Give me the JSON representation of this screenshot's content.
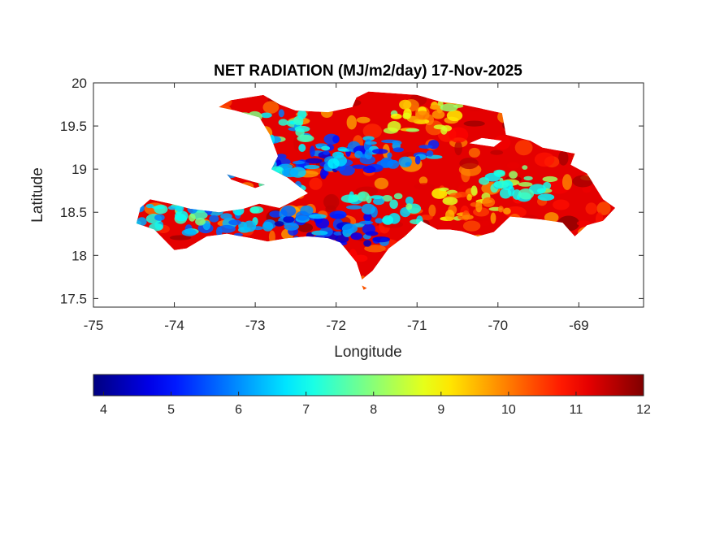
{
  "chart_data": {
    "type": "heatmap",
    "title": "NET RADIATION (MJ/m2/day) 17-Nov-2025",
    "xlabel": "Longitude",
    "ylabel": "Latitude",
    "xlim": [
      -75,
      -68.2
    ],
    "ylim": [
      17.4,
      20
    ],
    "x_ticks": [
      -75,
      -74,
      -73,
      -72,
      -71,
      -70,
      -69
    ],
    "x_tick_labels": [
      "-75",
      "-74",
      "-73",
      "-72",
      "-71",
      "-70",
      "-69"
    ],
    "y_ticks": [
      17.5,
      18,
      18.5,
      19,
      19.5,
      20
    ],
    "y_tick_labels": [
      "17.5",
      "18",
      "18.5",
      "19",
      "19.5",
      "20"
    ],
    "grid": false,
    "colormap": "jet",
    "colorbar": {
      "orientation": "horizontal",
      "placement": "below",
      "range": [
        3.85,
        12
      ],
      "ticks": [
        4,
        5,
        6,
        7,
        8,
        9,
        10,
        11,
        12
      ],
      "tick_labels": [
        "4",
        "5",
        "6",
        "7",
        "8",
        "9",
        "10",
        "11",
        "12"
      ]
    },
    "region": "Hispaniola",
    "land_outline": [
      [
        -74.47,
        18.37
      ],
      [
        -74.42,
        18.55
      ],
      [
        -74.3,
        18.65
      ],
      [
        -74.05,
        18.6
      ],
      [
        -73.8,
        18.54
      ],
      [
        -73.45,
        18.5
      ],
      [
        -73.15,
        18.54
      ],
      [
        -72.95,
        18.6
      ],
      [
        -72.7,
        18.55
      ],
      [
        -72.55,
        18.62
      ],
      [
        -72.35,
        18.72
      ],
      [
        -72.6,
        18.9
      ],
      [
        -72.8,
        19.0
      ],
      [
        -72.72,
        19.15
      ],
      [
        -72.82,
        19.4
      ],
      [
        -72.95,
        19.6
      ],
      [
        -73.25,
        19.68
      ],
      [
        -73.45,
        19.72
      ],
      [
        -73.3,
        19.8
      ],
      [
        -72.9,
        19.86
      ],
      [
        -72.7,
        19.75
      ],
      [
        -72.5,
        19.68
      ],
      [
        -72.1,
        19.66
      ],
      [
        -71.8,
        19.72
      ],
      [
        -71.75,
        19.83
      ],
      [
        -71.6,
        19.9
      ],
      [
        -71.3,
        19.88
      ],
      [
        -71.0,
        19.86
      ],
      [
        -70.7,
        19.78
      ],
      [
        -70.45,
        19.75
      ],
      [
        -70.2,
        19.7
      ],
      [
        -69.95,
        19.65
      ],
      [
        -69.9,
        19.4
      ],
      [
        -69.6,
        19.33
      ],
      [
        -69.45,
        19.25
      ],
      [
        -69.05,
        19.18
      ],
      [
        -69.1,
        19.05
      ],
      [
        -68.9,
        18.95
      ],
      [
        -68.7,
        18.65
      ],
      [
        -68.55,
        18.55
      ],
      [
        -68.7,
        18.4
      ],
      [
        -68.9,
        18.35
      ],
      [
        -69.05,
        18.22
      ],
      [
        -69.2,
        18.38
      ],
      [
        -69.5,
        18.42
      ],
      [
        -69.85,
        18.45
      ],
      [
        -70.05,
        18.27
      ],
      [
        -70.25,
        18.22
      ],
      [
        -70.45,
        18.28
      ],
      [
        -70.6,
        18.3
      ],
      [
        -70.75,
        18.3
      ],
      [
        -70.95,
        18.4
      ],
      [
        -71.15,
        18.22
      ],
      [
        -71.35,
        18.08
      ],
      [
        -71.55,
        17.82
      ],
      [
        -71.68,
        17.72
      ],
      [
        -71.75,
        17.92
      ],
      [
        -71.95,
        18.15
      ],
      [
        -72.1,
        18.2
      ],
      [
        -72.35,
        18.22
      ],
      [
        -72.6,
        18.2
      ],
      [
        -72.85,
        18.16
      ],
      [
        -73.05,
        18.2
      ],
      [
        -73.35,
        18.25
      ],
      [
        -73.6,
        18.22
      ],
      [
        -73.85,
        18.08
      ],
      [
        -74.0,
        18.06
      ],
      [
        -74.25,
        18.3
      ]
    ],
    "islands": [
      [
        [
          -73.35,
          18.94
        ],
        [
          -73.05,
          18.86
        ],
        [
          -72.88,
          18.82
        ],
        [
          -73.0,
          18.78
        ],
        [
          -73.3,
          18.88
        ]
      ],
      [
        [
          -70.35,
          19.3
        ],
        [
          -70.05,
          19.26
        ],
        [
          -69.95,
          19.33
        ],
        [
          -70.2,
          19.36
        ]
      ],
      [
        [
          -71.68,
          17.65
        ],
        [
          -71.62,
          17.62
        ],
        [
          -71.66,
          17.6
        ]
      ]
    ],
    "field_centers": [
      {
        "lon": -72.3,
        "lat": 19.1,
        "value": 5.0
      },
      {
        "lon": -72.0,
        "lat": 19.2,
        "value": 5.5
      },
      {
        "lon": -71.2,
        "lat": 19.15,
        "value": 5.2
      },
      {
        "lon": -72.4,
        "lat": 18.35,
        "value": 4.8
      },
      {
        "lon": -71.8,
        "lat": 18.3,
        "value": 5.0
      },
      {
        "lon": -73.4,
        "lat": 18.4,
        "value": 6.0
      },
      {
        "lon": -74.1,
        "lat": 18.42,
        "value": 6.5
      },
      {
        "lon": -72.8,
        "lat": 19.5,
        "value": 6.5
      },
      {
        "lon": -69.8,
        "lat": 18.85,
        "value": 7.0
      },
      {
        "lon": -70.9,
        "lat": 19.6,
        "value": 8.5
      },
      {
        "lon": -71.4,
        "lat": 18.55,
        "value": 6.5
      },
      {
        "lon": -72.9,
        "lat": 18.9,
        "value": 6.0
      },
      {
        "lon": -70.3,
        "lat": 18.6,
        "value": 9.0
      }
    ]
  }
}
